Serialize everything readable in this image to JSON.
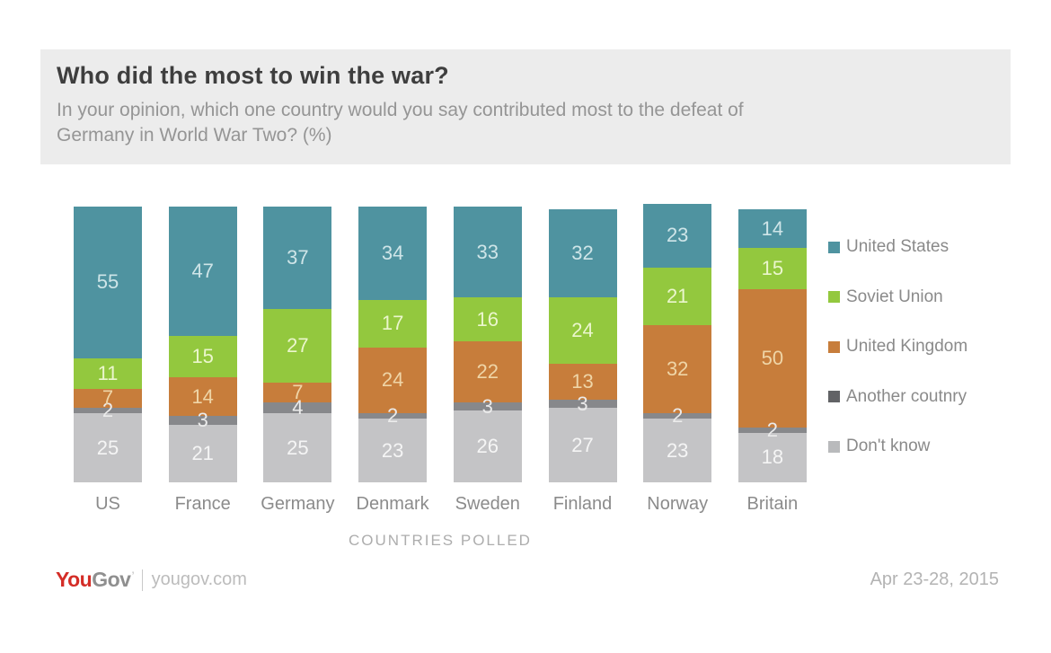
{
  "header": {
    "title": "Who did the most to win the war?",
    "subtitle": "In your opinion, which one country would you say contributed most to the defeat of\nGermany in World War Two? (%)"
  },
  "chart_data": {
    "type": "bar",
    "stacked": true,
    "title": "Who did the most to win the war?",
    "xlabel": "COUNTRIES POLLED",
    "ylabel": "",
    "ylim": [
      0,
      100
    ],
    "grid": false,
    "legend_position": "right",
    "categories": [
      "US",
      "France",
      "Germany",
      "Denmark",
      "Sweden",
      "Finland",
      "Norway",
      "Britain"
    ],
    "series": [
      {
        "name": "United States",
        "color": "#4f93a0",
        "legend_color": "#4f93a0",
        "label_color": "#cfe5e8",
        "values": [
          55,
          47,
          37,
          34,
          33,
          32,
          23,
          14
        ]
      },
      {
        "name": "Soviet Union",
        "color": "#93c83e",
        "legend_color": "#93c83e",
        "label_color": "#ebf6cd",
        "values": [
          11,
          15,
          27,
          17,
          16,
          24,
          21,
          15
        ]
      },
      {
        "name": "United Kingdom",
        "color": "#c77d3b",
        "legend_color": "#c77d3b",
        "label_color": "#efd5a7",
        "values": [
          7,
          14,
          7,
          24,
          22,
          13,
          32,
          50
        ]
      },
      {
        "name": "Another coutnry",
        "color": "#87888b",
        "legend_color": "#626366",
        "label_color": "#ebebeb",
        "values": [
          2,
          3,
          4,
          2,
          3,
          3,
          2,
          2
        ]
      },
      {
        "name": "Don't know",
        "color": "#c4c4c6",
        "legend_color": "#b9babc",
        "label_color": "#f5f5f5",
        "values": [
          25,
          21,
          25,
          23,
          26,
          27,
          23,
          18
        ]
      }
    ]
  },
  "footer": {
    "brand_you": "You",
    "brand_gov": "Gov",
    "site": "yougov.com",
    "date": "Apr 23-28, 2015"
  }
}
